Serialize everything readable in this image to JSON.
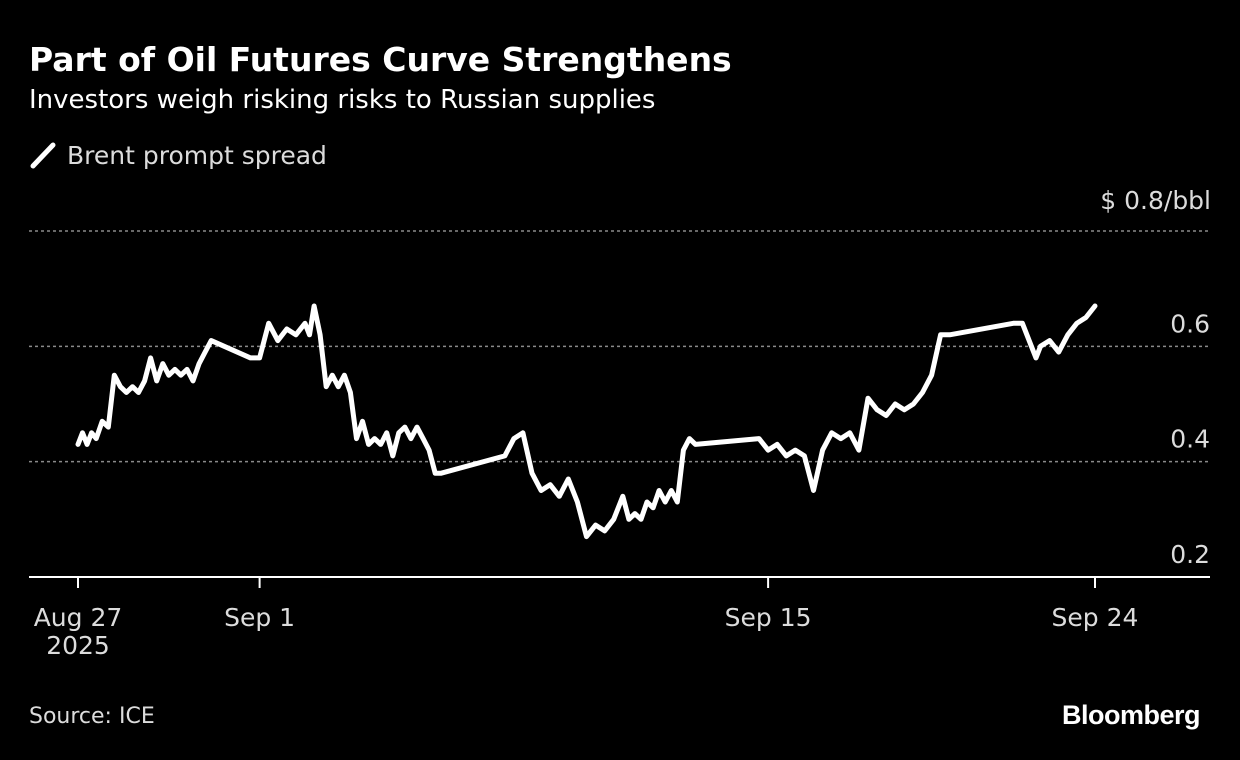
{
  "colors": {
    "background": "#000000",
    "text": "#ffffff",
    "muted_text": "#dcdcdc",
    "line": "#ffffff",
    "grid": "#8a8a8a",
    "axis": "#ffffff"
  },
  "footer": {
    "source": "Source: ICE",
    "brand": "Bloomberg"
  },
  "chart_data": {
    "type": "line",
    "title": "Part of Oil Futures Curve Strengthens",
    "subtitle": "Investors weigh risking risks to Russian supplies",
    "legend": {
      "position": "top-left",
      "entries": [
        "Brent prompt spread"
      ]
    },
    "y_unit_label": "$ 0.8/bbl",
    "y_axis": {
      "min": 0.2,
      "max": 0.8,
      "position": "right",
      "ticks": [
        0.2,
        0.4,
        0.6,
        0.8
      ],
      "tick_labels": [
        "0.2",
        "0.4",
        "0.6",
        "$ 0.8/bbl"
      ],
      "grid": true
    },
    "x_axis": {
      "start": "2025-08-27",
      "end": "2025-09-26",
      "ticks": [
        {
          "date": "2025-08-27",
          "label": [
            "Aug 27",
            "2025"
          ]
        },
        {
          "date": "2025-09-01",
          "label": [
            "Sep 1"
          ]
        },
        {
          "date": "2025-09-15",
          "label": [
            "Sep 15"
          ]
        },
        {
          "date": "2025-09-24",
          "label": [
            "Sep 24"
          ]
        }
      ]
    },
    "series": [
      {
        "name": "Brent prompt spread",
        "points": [
          [
            "2025-08-27T00:00",
            0.43
          ],
          [
            "2025-08-27T03:00",
            0.45
          ],
          [
            "2025-08-27T06:00",
            0.43
          ],
          [
            "2025-08-27T09:00",
            0.45
          ],
          [
            "2025-08-27T12:00",
            0.44
          ],
          [
            "2025-08-27T16:00",
            0.47
          ],
          [
            "2025-08-27T20:00",
            0.46
          ],
          [
            "2025-08-28T00:00",
            0.55
          ],
          [
            "2025-08-28T04:00",
            0.53
          ],
          [
            "2025-08-28T08:00",
            0.52
          ],
          [
            "2025-08-28T12:00",
            0.53
          ],
          [
            "2025-08-28T16:00",
            0.52
          ],
          [
            "2025-08-28T20:00",
            0.54
          ],
          [
            "2025-08-29T00:00",
            0.58
          ],
          [
            "2025-08-29T04:00",
            0.54
          ],
          [
            "2025-08-29T08:00",
            0.57
          ],
          [
            "2025-08-29T12:00",
            0.55
          ],
          [
            "2025-08-29T16:00",
            0.56
          ],
          [
            "2025-08-29T20:00",
            0.55
          ],
          [
            "2025-08-30T00:00",
            0.56
          ],
          [
            "2025-08-30T04:00",
            0.54
          ],
          [
            "2025-08-30T08:00",
            0.57
          ],
          [
            "2025-08-30T12:00",
            0.59
          ],
          [
            "2025-08-30T16:00",
            0.61
          ],
          [
            "2025-08-31T18:00",
            0.58
          ],
          [
            "2025-09-01T00:00",
            0.58
          ],
          [
            "2025-09-01T06:00",
            0.64
          ],
          [
            "2025-09-01T12:00",
            0.61
          ],
          [
            "2025-09-01T18:00",
            0.63
          ],
          [
            "2025-09-02T00:00",
            0.62
          ],
          [
            "2025-09-02T06:00",
            0.64
          ],
          [
            "2025-09-02T09:00",
            0.62
          ],
          [
            "2025-09-02T12:00",
            0.67
          ],
          [
            "2025-09-02T16:00",
            0.62
          ],
          [
            "2025-09-02T20:00",
            0.53
          ],
          [
            "2025-09-03T00:00",
            0.55
          ],
          [
            "2025-09-03T04:00",
            0.53
          ],
          [
            "2025-09-03T08:00",
            0.55
          ],
          [
            "2025-09-03T12:00",
            0.52
          ],
          [
            "2025-09-03T16:00",
            0.44
          ],
          [
            "2025-09-03T20:00",
            0.47
          ],
          [
            "2025-09-04T00:00",
            0.43
          ],
          [
            "2025-09-04T04:00",
            0.44
          ],
          [
            "2025-09-04T08:00",
            0.43
          ],
          [
            "2025-09-04T12:00",
            0.45
          ],
          [
            "2025-09-04T16:00",
            0.41
          ],
          [
            "2025-09-04T20:00",
            0.45
          ],
          [
            "2025-09-05T00:00",
            0.46
          ],
          [
            "2025-09-05T04:00",
            0.44
          ],
          [
            "2025-09-05T08:00",
            0.46
          ],
          [
            "2025-09-05T12:00",
            0.44
          ],
          [
            "2025-09-05T16:00",
            0.42
          ],
          [
            "2025-09-05T20:00",
            0.38
          ],
          [
            "2025-09-06T00:00",
            0.38
          ],
          [
            "2025-09-07T18:00",
            0.41
          ],
          [
            "2025-09-08T00:00",
            0.44
          ],
          [
            "2025-09-08T06:00",
            0.45
          ],
          [
            "2025-09-08T12:00",
            0.38
          ],
          [
            "2025-09-08T18:00",
            0.35
          ],
          [
            "2025-09-09T00:00",
            0.36
          ],
          [
            "2025-09-09T06:00",
            0.34
          ],
          [
            "2025-09-09T12:00",
            0.37
          ],
          [
            "2025-09-09T18:00",
            0.33
          ],
          [
            "2025-09-10T00:00",
            0.27
          ],
          [
            "2025-09-10T06:00",
            0.29
          ],
          [
            "2025-09-10T12:00",
            0.28
          ],
          [
            "2025-09-10T18:00",
            0.3
          ],
          [
            "2025-09-11T00:00",
            0.34
          ],
          [
            "2025-09-11T04:00",
            0.3
          ],
          [
            "2025-09-11T08:00",
            0.31
          ],
          [
            "2025-09-11T12:00",
            0.3
          ],
          [
            "2025-09-11T16:00",
            0.33
          ],
          [
            "2025-09-11T20:00",
            0.32
          ],
          [
            "2025-09-12T00:00",
            0.35
          ],
          [
            "2025-09-12T04:00",
            0.33
          ],
          [
            "2025-09-12T08:00",
            0.35
          ],
          [
            "2025-09-12T12:00",
            0.33
          ],
          [
            "2025-09-12T16:00",
            0.42
          ],
          [
            "2025-09-12T20:00",
            0.44
          ],
          [
            "2025-09-13T00:00",
            0.43
          ],
          [
            "2025-09-14T18:00",
            0.44
          ],
          [
            "2025-09-15T00:00",
            0.42
          ],
          [
            "2025-09-15T06:00",
            0.43
          ],
          [
            "2025-09-15T12:00",
            0.41
          ],
          [
            "2025-09-15T18:00",
            0.42
          ],
          [
            "2025-09-16T00:00",
            0.41
          ],
          [
            "2025-09-16T06:00",
            0.35
          ],
          [
            "2025-09-16T12:00",
            0.42
          ],
          [
            "2025-09-16T18:00",
            0.45
          ],
          [
            "2025-09-17T00:00",
            0.44
          ],
          [
            "2025-09-17T06:00",
            0.45
          ],
          [
            "2025-09-17T12:00",
            0.42
          ],
          [
            "2025-09-17T18:00",
            0.51
          ],
          [
            "2025-09-18T00:00",
            0.49
          ],
          [
            "2025-09-18T06:00",
            0.48
          ],
          [
            "2025-09-18T12:00",
            0.5
          ],
          [
            "2025-09-18T18:00",
            0.49
          ],
          [
            "2025-09-19T00:00",
            0.5
          ],
          [
            "2025-09-19T06:00",
            0.52
          ],
          [
            "2025-09-19T12:00",
            0.55
          ],
          [
            "2025-09-19T18:00",
            0.62
          ],
          [
            "2025-09-20T00:00",
            0.62
          ],
          [
            "2025-09-21T18:00",
            0.64
          ],
          [
            "2025-09-22T00:00",
            0.64
          ],
          [
            "2025-09-22T06:00",
            0.6
          ],
          [
            "2025-09-22T09:00",
            0.58
          ],
          [
            "2025-09-22T12:00",
            0.6
          ],
          [
            "2025-09-22T18:00",
            0.61
          ],
          [
            "2025-09-23T00:00",
            0.59
          ],
          [
            "2025-09-23T06:00",
            0.62
          ],
          [
            "2025-09-23T12:00",
            0.64
          ],
          [
            "2025-09-23T18:00",
            0.65
          ],
          [
            "2025-09-24T00:00",
            0.67
          ]
        ]
      }
    ]
  }
}
